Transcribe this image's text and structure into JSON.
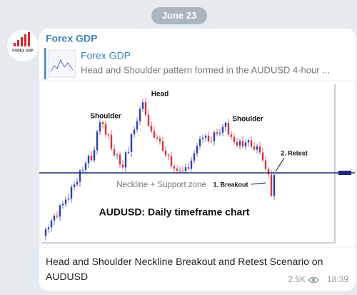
{
  "date_badge": "June 23",
  "message": {
    "avatar_text": "FOREX GDP",
    "sender": "Forex GDP",
    "link_preview": {
      "title": "Forex GDP",
      "description": "Head and Shoulder pattern formed in the AUDUSD 4-hour ..."
    },
    "image": {
      "annotations": {
        "head": "Head",
        "left_shoulder": "Shoulder",
        "right_shoulder": "Shoulder",
        "retest": "2. Retest",
        "breakout": "1. Breakout",
        "neckline": "Neckline + Support zone",
        "caption": "AUDUSD: Daily timeframe chart"
      }
    },
    "text": "Head and Shoulder Neckline Breakout and Retest Scenario on AUDUSD",
    "views": "2.5K",
    "time": "18:39"
  }
}
